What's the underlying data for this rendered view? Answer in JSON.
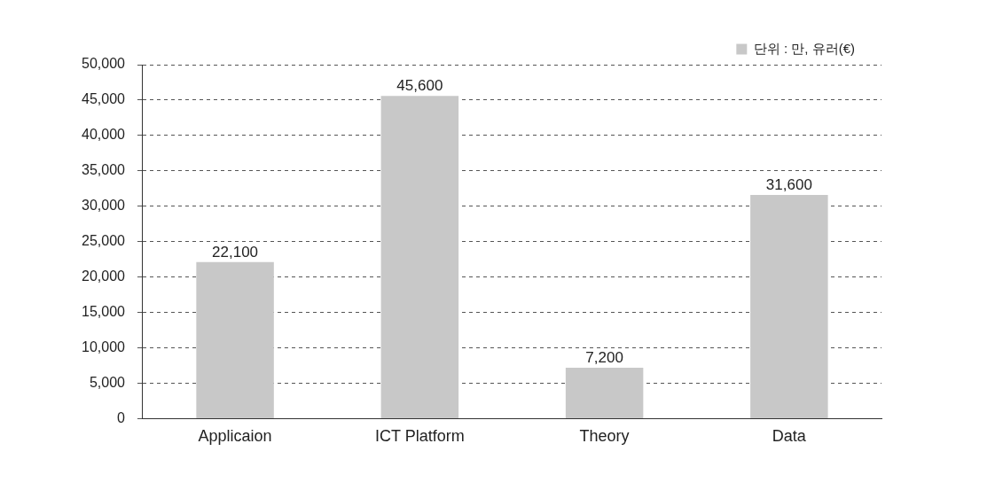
{
  "chart_data": {
    "type": "bar",
    "categories": [
      "Applicaion",
      "ICT Platform",
      "Theory",
      "Data"
    ],
    "series": [
      {
        "name": "단위 : 만, 유러(€)",
        "color": "#c8c8c8",
        "values": [
          22100,
          45600,
          7200,
          31600
        ],
        "value_labels": [
          "22,100",
          "45,600",
          "7,200",
          "31,600"
        ]
      }
    ],
    "ylim": [
      0,
      50000
    ],
    "yticks": [
      0,
      {
        "value": 5000,
        "label": "5,000"
      },
      {
        "value": 10000,
        "label": "10,000"
      },
      {
        "value": 15000,
        "label": "15,000"
      },
      {
        "value": 20000,
        "label": "20,000"
      },
      {
        "value": 25000,
        "label": "25,000"
      },
      {
        "value": 30000,
        "label": "30,000"
      },
      {
        "value": 35000,
        "label": "35,000"
      },
      {
        "value": 40000,
        "label": "40,000"
      },
      {
        "value": 45000,
        "label": "45,000"
      },
      {
        "value": 50000,
        "label": "50,000"
      }
    ],
    "grid": "y",
    "line_style": "dashed",
    "legend": "top right"
  }
}
